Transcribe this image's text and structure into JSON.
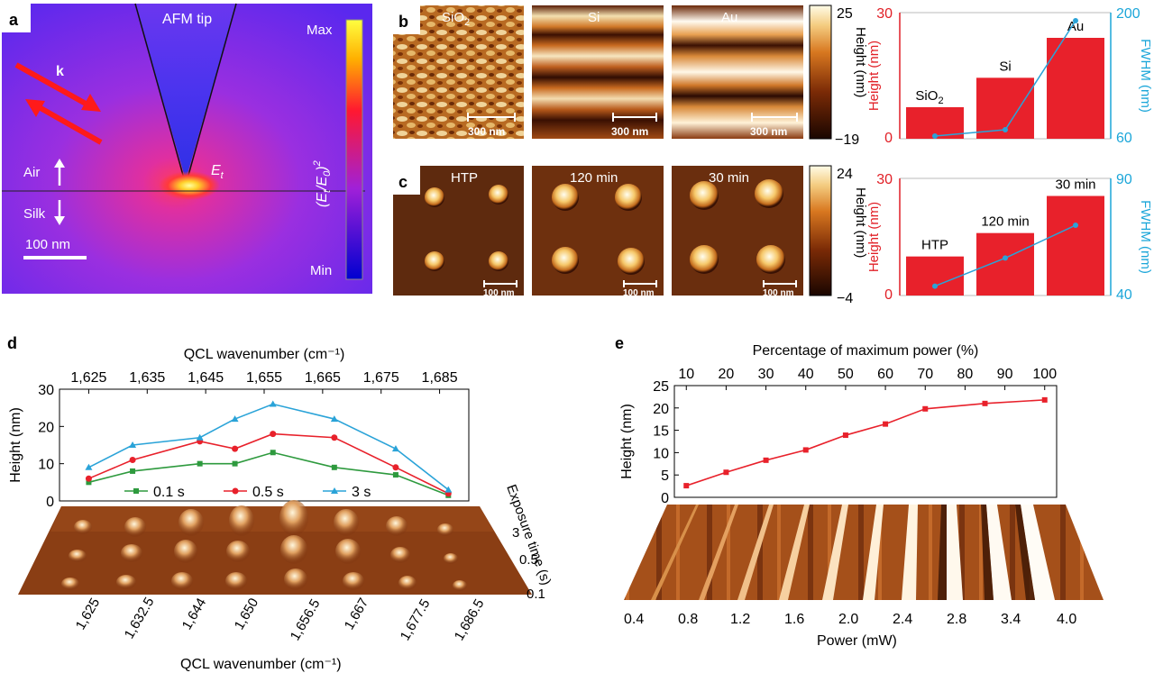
{
  "colors": {
    "red": "#e8212b",
    "blue": "#2aa3d8",
    "green": "#2e9a3e",
    "fwhm_axis": "#1ba6d9",
    "height_axis": "#e11f26"
  },
  "panel_a": {
    "label": "a",
    "tip_label": "AFM tip",
    "k_label": "k",
    "air_label": "Air",
    "silk_label": "Silk",
    "field_label": "E",
    "field_sub": "t",
    "scale_label": "100 nm",
    "cb_max": "Max",
    "cb_min": "Min",
    "cb_title_1": "(E",
    "cb_title_sub": "t",
    "cb_title_2": "/E",
    "cb_title_sub2": "0",
    "cb_title_3": ")",
    "cb_title_sup": "2"
  },
  "panel_b": {
    "label": "b",
    "images": [
      "SiO2",
      "Si",
      "Au"
    ],
    "scale_label": "300 nm",
    "cb_max": "25",
    "cb_min": "−19",
    "cb_title": "Height (nm)"
  },
  "panel_c": {
    "label": "c",
    "images": [
      "HTP",
      "120 min",
      "30 min"
    ],
    "scale_label": "100 nm",
    "cb_max": "24",
    "cb_min": "−4",
    "cb_title": "Height (nm)"
  },
  "panel_d": {
    "label": "d",
    "xbottom_ticks": [
      "1,625",
      "1,632.5",
      "1,644",
      "1,650",
      "1,656.5",
      "1,667",
      "1,677.5",
      "1,686.5"
    ],
    "ybottom_ticks": [
      "3",
      "0.5",
      "0.1"
    ],
    "ybottom_title": "Exposure time (s)"
  },
  "panel_e": {
    "label": "e",
    "xbottom_ticks": [
      "0.4",
      "0.8",
      "1.2",
      "1.6",
      "2.0",
      "2.4",
      "2.8",
      "3.4",
      "4.0"
    ]
  },
  "chart_data": [
    {
      "id": "b-bar",
      "type": "bar",
      "categories": [
        "SiO2",
        "Si",
        "Au"
      ],
      "values": [
        7.5,
        14.5,
        24
      ],
      "ylabel": "Height (nm)",
      "ylim": [
        0,
        30
      ],
      "yticks": [
        "0",
        "30"
      ],
      "series": [
        {
          "name": "FWHM (nm)",
          "values": [
            63,
            70,
            191
          ]
        }
      ],
      "y2label": "FWHM (nm)",
      "y2lim": [
        60,
        200
      ],
      "y2ticks": [
        "60",
        "200"
      ]
    },
    {
      "id": "c-bar",
      "type": "bar",
      "categories": [
        "HTP",
        "120 min",
        "30 min"
      ],
      "values": [
        10,
        16,
        25.5
      ],
      "ylabel": "Height (nm)",
      "ylim": [
        0,
        30
      ],
      "yticks": [
        "0",
        "30"
      ],
      "series": [
        {
          "name": "FWHM (nm)",
          "values": [
            44,
            56,
            70
          ]
        }
      ],
      "y2label": "FWHM (nm)",
      "y2lim": [
        40,
        90
      ],
      "y2ticks": [
        "40",
        "90"
      ]
    },
    {
      "id": "d-line",
      "type": "line",
      "x": [
        1625,
        1632.5,
        1644,
        1650,
        1656.5,
        1667,
        1677.5,
        1686.5
      ],
      "xlabel": "QCL wavenumber (cm⁻¹)",
      "xlim": [
        1620,
        1690
      ],
      "xticks": [
        1625,
        1635,
        1645,
        1655,
        1665,
        1675,
        1685
      ],
      "xticklabels": [
        "1,625",
        "1,635",
        "1,645",
        "1,655",
        "1,665",
        "1,675",
        "1,685"
      ],
      "xlabel_bottom": "QCL wavenumber (cm⁻¹)",
      "ylabel": "Height (nm)",
      "ylim": [
        0,
        30
      ],
      "yticks": [
        0,
        10,
        20,
        30
      ],
      "yticklabels": [
        "0",
        "10",
        "20",
        "30"
      ],
      "series": [
        {
          "name": "0.1 s",
          "color": "#2e9a3e",
          "marker": "square",
          "values": [
            5,
            8,
            10,
            10,
            13,
            9,
            7,
            1.5
          ]
        },
        {
          "name": "0.5 s",
          "color": "#e8212b",
          "marker": "circle",
          "values": [
            6,
            11,
            16,
            14,
            18,
            17,
            9,
            2
          ]
        },
        {
          "name": "3 s",
          "color": "#2aa3d8",
          "marker": "triangle",
          "values": [
            9,
            15,
            17,
            22,
            26,
            22,
            14,
            3
          ]
        }
      ],
      "legend": "bottom"
    },
    {
      "id": "e-line",
      "type": "line",
      "x": [
        10,
        20,
        30,
        40,
        50,
        60,
        70,
        85,
        100
      ],
      "xlabel": "Percentage of maximum power (%)",
      "xlim": [
        7,
        103
      ],
      "xticks": [
        10,
        20,
        30,
        40,
        50,
        60,
        70,
        80,
        90,
        100
      ],
      "xticklabels": [
        "10",
        "20",
        "30",
        "40",
        "50",
        "60",
        "70",
        "80",
        "90",
        "100"
      ],
      "xlabel_bottom": "Power (mW)",
      "ylabel": "Height (nm)",
      "ylim": [
        0,
        25
      ],
      "yticks": [
        0,
        5,
        10,
        15,
        20,
        25
      ],
      "yticklabels": [
        "0",
        "5",
        "10",
        "15",
        "20",
        "25"
      ],
      "series": [
        {
          "name": "Height",
          "color": "#e8212b",
          "marker": "square",
          "values": [
            2.6,
            5.6,
            8.3,
            10.6,
            13.9,
            16.4,
            19.8,
            21,
            21.8
          ]
        }
      ]
    }
  ]
}
